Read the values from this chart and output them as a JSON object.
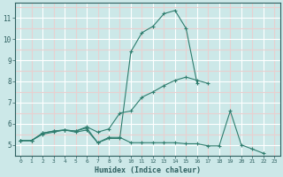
{
  "xlabel": "Humidex (Indice chaleur)",
  "x_values": [
    0,
    1,
    2,
    3,
    4,
    5,
    6,
    7,
    8,
    9,
    10,
    11,
    12,
    13,
    14,
    15,
    16,
    17,
    18,
    19,
    20,
    21,
    22,
    23
  ],
  "line1": [
    5.2,
    5.2,
    5.5,
    5.6,
    5.7,
    5.6,
    5.7,
    5.1,
    5.3,
    5.3,
    9.4,
    10.3,
    10.6,
    11.2,
    11.35,
    10.5,
    7.9,
    null,
    null,
    null,
    null,
    null,
    null,
    null
  ],
  "line2": [
    5.2,
    5.2,
    5.55,
    5.65,
    5.7,
    5.65,
    5.85,
    5.6,
    5.75,
    6.5,
    6.6,
    7.25,
    7.5,
    7.8,
    8.05,
    8.2,
    8.05,
    7.9,
    null,
    null,
    null,
    null,
    null,
    null
  ],
  "line3": [
    5.2,
    5.2,
    5.55,
    5.65,
    5.7,
    5.65,
    5.8,
    5.1,
    5.35,
    5.35,
    5.1,
    5.1,
    5.1,
    5.1,
    5.1,
    5.05,
    5.05,
    4.95,
    4.95,
    6.6,
    5.0,
    4.8,
    4.6,
    null
  ],
  "line_color": "#2e7d6e",
  "bg_color": "#cce8e8",
  "grid_color": "#b8d8d8",
  "grid_red_color": "#d8b8b8",
  "tick_color": "#2e6060",
  "ylim": [
    4.5,
    11.7
  ],
  "xlim": [
    -0.5,
    23.5
  ],
  "yticks": [
    5,
    6,
    7,
    8,
    9,
    10,
    11
  ],
  "xticks": [
    0,
    1,
    2,
    3,
    4,
    5,
    6,
    7,
    8,
    9,
    10,
    11,
    12,
    13,
    14,
    15,
    16,
    17,
    18,
    19,
    20,
    21,
    22,
    23
  ]
}
